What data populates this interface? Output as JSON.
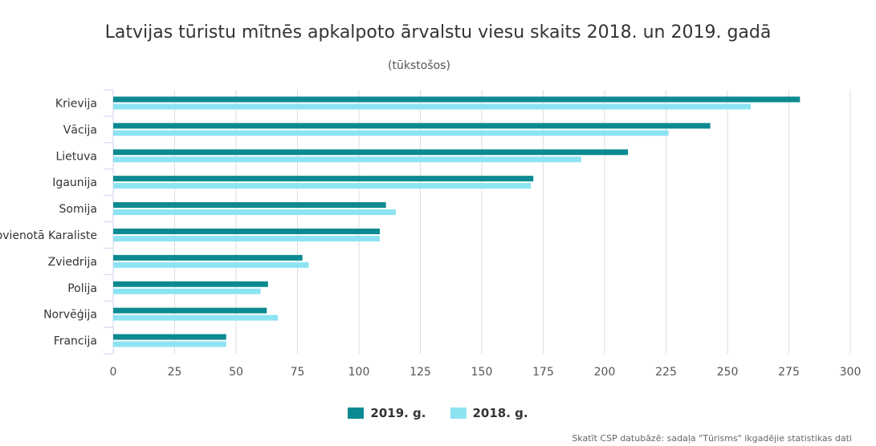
{
  "chart_data": {
    "type": "bar",
    "orientation": "horizontal",
    "title": "Latvijas tūristu mītnēs apkalpoto ārvalstu viesu skaits 2018. un 2019. gadā",
    "subtitle": "(tūkstošos)",
    "categories": [
      "Krievija",
      "Vācija",
      "Lietuva",
      "Igaunija",
      "Somija",
      "Apvienotā Karaliste",
      "Zviedrija",
      "Polija",
      "Norvēģija",
      "Francija"
    ],
    "series": [
      {
        "name": "2019. g.",
        "color": "#0b8a91",
        "values": [
          279.5,
          243,
          209.5,
          171,
          111,
          108.5,
          77,
          63,
          62.5,
          46
        ]
      },
      {
        "name": "2018. g.",
        "color": "#8ee3f2",
        "values": [
          259.5,
          226,
          190.5,
          170,
          115,
          108.5,
          79.5,
          60,
          67,
          46
        ]
      }
    ],
    "x_ticks": [
      "0",
      "25",
      "50",
      "75",
      "100",
      "125",
      "150",
      "175",
      "200",
      "225",
      "250",
      "275",
      "300"
    ],
    "xlim": [
      0,
      300
    ],
    "grid": "vertical",
    "legend": "bottom-center",
    "credits": "Skatīt CSP datubāzē: sadaļa \"Tūrisms\" ikgadējie statistikas dati"
  }
}
